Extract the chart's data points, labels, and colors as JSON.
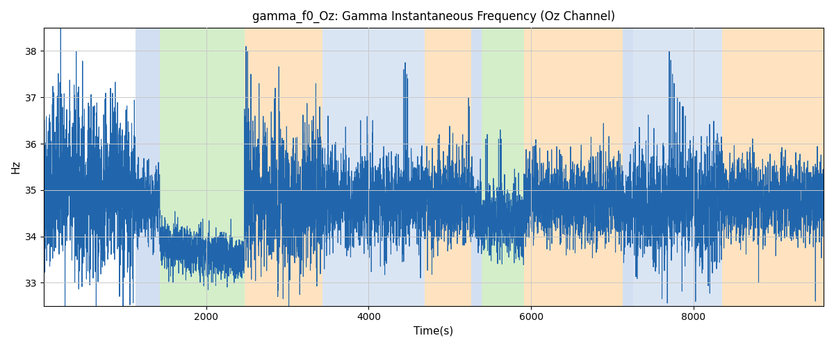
{
  "title": "gamma_f0_Oz: Gamma Instantaneous Frequency (Oz Channel)",
  "xlabel": "Time(s)",
  "ylabel": "Hz",
  "xlim": [
    0,
    9600
  ],
  "ylim": [
    32.5,
    38.5
  ],
  "yticks": [
    33,
    34,
    35,
    36,
    37,
    38
  ],
  "xticks": [
    2000,
    4000,
    6000,
    8000
  ],
  "line_color": "#2166ac",
  "line_width": 0.8,
  "figsize": [
    12,
    5
  ],
  "dpi": 100,
  "background_color": "#ffffff",
  "grid_color": "#c8c8c8",
  "bands": [
    {
      "xmin": 1130,
      "xmax": 1430,
      "color": "#aec6e8",
      "alpha": 0.55
    },
    {
      "xmin": 1430,
      "xmax": 2470,
      "color": "#b2e0a0",
      "alpha": 0.55
    },
    {
      "xmin": 2470,
      "xmax": 3430,
      "color": "#ffd59e",
      "alpha": 0.65
    },
    {
      "xmin": 3430,
      "xmax": 4690,
      "color": "#aec6e8",
      "alpha": 0.45
    },
    {
      "xmin": 4690,
      "xmax": 5260,
      "color": "#ffd59e",
      "alpha": 0.65
    },
    {
      "xmin": 5260,
      "xmax": 5390,
      "color": "#aec6e8",
      "alpha": 0.55
    },
    {
      "xmin": 5390,
      "xmax": 5910,
      "color": "#b2e0a0",
      "alpha": 0.55
    },
    {
      "xmin": 5910,
      "xmax": 7130,
      "color": "#ffd59e",
      "alpha": 0.65
    },
    {
      "xmin": 7130,
      "xmax": 7260,
      "color": "#aec6e8",
      "alpha": 0.55
    },
    {
      "xmin": 7260,
      "xmax": 8350,
      "color": "#aec6e8",
      "alpha": 0.45
    },
    {
      "xmin": 8350,
      "xmax": 9600,
      "color": "#ffd59e",
      "alpha": 0.65
    }
  ],
  "segments": [
    [
      0,
      1130,
      34.9,
      0.9,
      0.3
    ],
    [
      1130,
      1430,
      34.7,
      0.4,
      0.2
    ],
    [
      1430,
      2470,
      33.8,
      0.25,
      0.1
    ],
    [
      2470,
      3430,
      34.8,
      0.75,
      0.4
    ],
    [
      3430,
      4690,
      34.8,
      0.5,
      0.3
    ],
    [
      4690,
      5260,
      34.8,
      0.5,
      0.3
    ],
    [
      5260,
      5390,
      34.6,
      0.4,
      0.2
    ],
    [
      5390,
      5910,
      34.4,
      0.35,
      0.2
    ],
    [
      5910,
      7130,
      34.8,
      0.45,
      0.3
    ],
    [
      7130,
      7260,
      34.6,
      0.4,
      0.2
    ],
    [
      7260,
      8350,
      34.7,
      0.6,
      0.35
    ],
    [
      8350,
      9600,
      34.8,
      0.45,
      0.3
    ]
  ],
  "seed": 42,
  "n_points": 9600
}
